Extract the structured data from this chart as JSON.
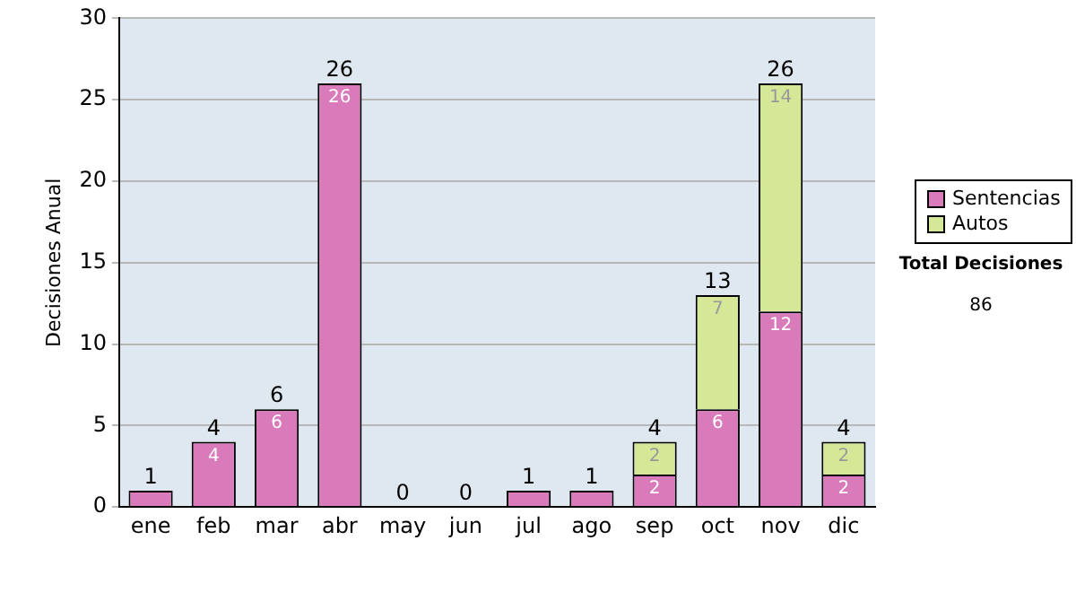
{
  "chart_data": {
    "type": "bar",
    "ylabel": "Decisiones Anual",
    "stacked": true,
    "categories": [
      "ene",
      "feb",
      "mar",
      "abr",
      "may",
      "jun",
      "jul",
      "ago",
      "sep",
      "oct",
      "nov",
      "dic"
    ],
    "series": [
      {
        "name": "Sentencias",
        "color": "#d97bbb",
        "values": [
          1,
          4,
          6,
          26,
          0,
          0,
          1,
          1,
          2,
          6,
          12,
          2
        ],
        "value_labels": [
          null,
          "4",
          "6",
          "26",
          null,
          null,
          null,
          null,
          "2",
          "6",
          "12",
          "2"
        ]
      },
      {
        "name": "Autos",
        "color": "#d4e898",
        "values": [
          0,
          0,
          0,
          0,
          0,
          0,
          0,
          0,
          2,
          7,
          14,
          2
        ],
        "value_labels": [
          null,
          null,
          null,
          null,
          null,
          null,
          null,
          null,
          "2",
          "7",
          "14",
          "2"
        ]
      }
    ],
    "totals": [
      "1",
      "4",
      "6",
      "26",
      "0",
      "0",
      "1",
      "1",
      "4",
      "13",
      "26",
      "4"
    ],
    "ylim": [
      0,
      30
    ],
    "yticks": [
      0,
      5,
      10,
      15,
      20,
      25,
      30
    ],
    "grid": "y",
    "legend": "right",
    "annotations": [
      "Total Decisiones",
      "86"
    ]
  }
}
